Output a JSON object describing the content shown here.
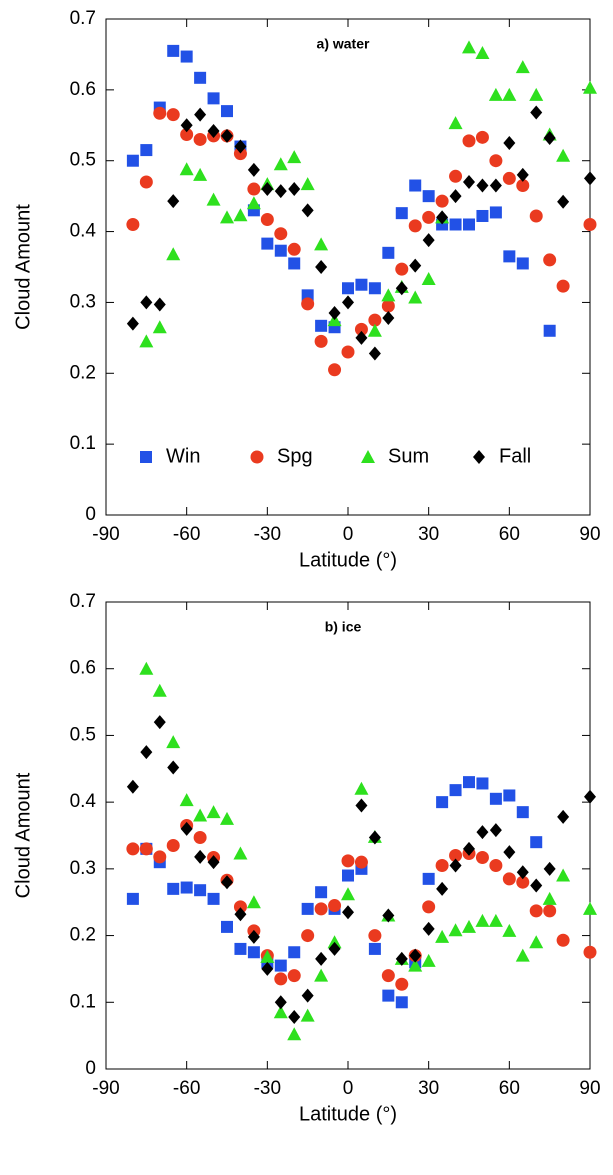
{
  "chart_data": [
    {
      "type": "scatter",
      "title": "a) water",
      "xlabel": "Latitude (°)",
      "ylabel": "Cloud Amount",
      "xlim": [
        -90,
        90
      ],
      "ylim": [
        0,
        0.7
      ],
      "xticks": [
        -90,
        -60,
        -30,
        0,
        30,
        60,
        90
      ],
      "yticks": [
        0,
        0.1,
        0.2,
        0.3,
        0.4,
        0.5,
        0.6,
        0.7
      ],
      "legend": "lower center",
      "x": [
        -80,
        -75,
        -70,
        -65,
        -60,
        -55,
        -50,
        -45,
        -40,
        -35,
        -30,
        -25,
        -20,
        -15,
        -10,
        -5,
        0,
        5,
        10,
        15,
        20,
        25,
        30,
        35,
        40,
        45,
        50,
        55,
        60,
        65,
        70,
        75,
        80,
        85,
        90
      ],
      "series": [
        {
          "name": "Win",
          "color": "#2251e6",
          "marker": "square",
          "values": [
            0.5,
            0.515,
            0.575,
            0.655,
            0.647,
            0.617,
            0.588,
            0.57,
            0.52,
            0.43,
            0.383,
            0.373,
            0.355,
            0.31,
            0.267,
            0.265,
            0.32,
            0.325,
            0.32,
            0.37,
            0.426,
            0.465,
            0.45,
            0.41,
            0.41,
            0.41,
            0.422,
            0.427,
            0.365,
            0.355,
            null,
            0.26,
            null,
            null,
            null
          ]
        },
        {
          "name": "Spg",
          "color": "#ea3a1f",
          "marker": "circle",
          "values": [
            0.41,
            0.47,
            0.567,
            0.565,
            0.537,
            0.53,
            0.535,
            0.535,
            0.51,
            0.46,
            0.417,
            0.397,
            0.375,
            0.298,
            0.245,
            0.205,
            0.23,
            0.262,
            0.275,
            0.295,
            0.347,
            0.408,
            0.42,
            0.443,
            0.478,
            0.528,
            0.533,
            0.5,
            0.475,
            0.465,
            0.422,
            0.36,
            0.323,
            null,
            0.41
          ]
        },
        {
          "name": "Sum",
          "color": "#2ee01e",
          "marker": "triangle",
          "values": [
            null,
            0.245,
            0.265,
            0.368,
            0.488,
            0.48,
            0.445,
            0.42,
            0.423,
            0.44,
            0.467,
            0.495,
            0.505,
            0.467,
            0.382,
            0.275,
            null,
            null,
            0.26,
            0.31,
            0.322,
            0.307,
            0.333,
            0.42,
            0.553,
            0.66,
            0.652,
            0.593,
            0.593,
            0.632,
            0.593,
            0.537,
            0.507,
            null,
            0.603
          ]
        },
        {
          "name": "Fall",
          "color": "#000000",
          "marker": "diamond",
          "values": [
            0.27,
            0.3,
            0.297,
            0.443,
            0.55,
            0.565,
            0.542,
            0.535,
            0.52,
            0.487,
            0.46,
            0.457,
            0.46,
            0.43,
            0.35,
            0.285,
            0.3,
            0.25,
            0.228,
            0.278,
            0.32,
            0.352,
            0.388,
            0.42,
            0.45,
            0.47,
            0.465,
            0.465,
            0.525,
            0.48,
            0.568,
            0.532,
            0.442,
            null,
            0.475
          ]
        }
      ]
    },
    {
      "type": "scatter",
      "title": "b) ice",
      "xlabel": "Latitude (°)",
      "ylabel": "Cloud Amount",
      "xlim": [
        -90,
        90
      ],
      "ylim": [
        0,
        0.7
      ],
      "xticks": [
        -90,
        -60,
        -30,
        0,
        30,
        60,
        90
      ],
      "yticks": [
        0,
        0.1,
        0.2,
        0.3,
        0.4,
        0.5,
        0.6,
        0.7
      ],
      "x": [
        -80,
        -75,
        -70,
        -65,
        -60,
        -55,
        -50,
        -45,
        -40,
        -35,
        -30,
        -25,
        -20,
        -15,
        -10,
        -5,
        0,
        5,
        10,
        15,
        20,
        25,
        30,
        35,
        40,
        45,
        50,
        55,
        60,
        65,
        70,
        75,
        80,
        85,
        90
      ],
      "series": [
        {
          "color": "#2251e6",
          "marker": "square",
          "values": [
            0.255,
            0.33,
            0.31,
            0.27,
            0.272,
            0.268,
            0.255,
            0.213,
            0.18,
            0.175,
            0.16,
            0.155,
            0.175,
            0.24,
            0.265,
            0.24,
            0.29,
            0.3,
            0.18,
            0.11,
            0.1,
            0.16,
            0.285,
            0.4,
            0.418,
            0.43,
            0.428,
            0.405,
            0.41,
            0.385,
            0.34,
            null,
            null,
            null,
            null
          ]
        },
        {
          "color": "#ea3a1f",
          "marker": "circle",
          "values": [
            0.33,
            0.33,
            0.318,
            0.335,
            0.365,
            0.347,
            0.317,
            0.283,
            0.243,
            0.207,
            0.17,
            0.135,
            0.14,
            0.2,
            0.24,
            0.245,
            0.312,
            0.31,
            0.2,
            0.14,
            0.127,
            0.17,
            0.243,
            0.305,
            0.32,
            0.323,
            0.317,
            0.305,
            0.285,
            0.28,
            0.237,
            0.237,
            0.193,
            null,
            0.175
          ]
        },
        {
          "color": "#2ee01e",
          "marker": "triangle",
          "values": [
            null,
            0.6,
            0.567,
            0.49,
            0.403,
            0.38,
            0.385,
            0.375,
            0.323,
            0.25,
            0.168,
            0.085,
            0.052,
            0.08,
            0.14,
            0.19,
            0.262,
            0.42,
            0.348,
            0.23,
            0.165,
            0.155,
            0.162,
            0.198,
            0.208,
            0.213,
            0.222,
            0.222,
            0.207,
            0.17,
            0.19,
            0.255,
            0.29,
            null,
            0.24
          ]
        },
        {
          "color": "#000000",
          "marker": "diamond",
          "values": [
            0.423,
            0.475,
            0.52,
            0.452,
            0.36,
            0.318,
            0.31,
            0.28,
            0.232,
            0.198,
            0.15,
            0.1,
            0.078,
            0.11,
            0.165,
            0.18,
            0.235,
            0.395,
            0.347,
            0.23,
            0.165,
            0.17,
            0.21,
            0.27,
            0.305,
            0.33,
            0.355,
            0.358,
            0.325,
            0.295,
            0.275,
            0.3,
            0.378,
            null,
            0.408
          ]
        }
      ]
    }
  ]
}
